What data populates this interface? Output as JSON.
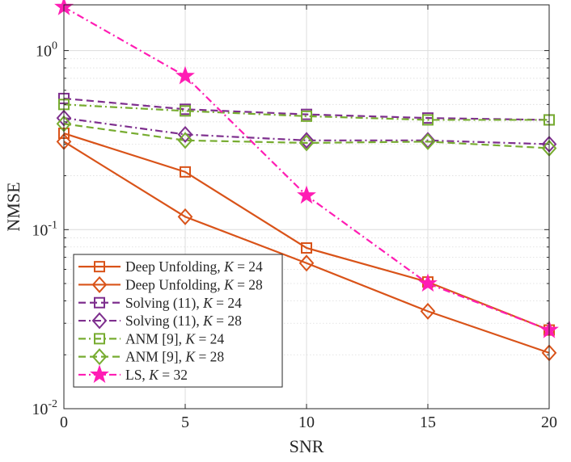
{
  "chart_data": {
    "type": "line",
    "xlabel": "SNR",
    "ylabel": "NMSE",
    "yscale": "log",
    "x": [
      0,
      5,
      10,
      15,
      20
    ],
    "xlim": [
      0,
      20
    ],
    "ylim": [
      0.01,
      1.8
    ],
    "grid": true,
    "xticks": [
      "0",
      "5",
      "10",
      "15",
      "20"
    ],
    "yticks": [
      {
        "value": 1,
        "base": "10",
        "exp": "0"
      },
      {
        "value": 0.1,
        "base": "10",
        "exp": "-1"
      },
      {
        "value": 0.01,
        "base": "10",
        "exp": "-2"
      }
    ],
    "legend_position": "bottom-left",
    "series": [
      {
        "name": "Deep Unfolding, ",
        "param": "K",
        "eq": " = 24",
        "values": [
          0.345,
          0.21,
          0.079,
          0.051,
          0.0275
        ],
        "color": "#D95319",
        "dash": "solid",
        "marker": "square"
      },
      {
        "name": "Deep Unfolding, ",
        "param": "K",
        "eq": " = 28",
        "values": [
          0.31,
          0.118,
          0.065,
          0.035,
          0.0205
        ],
        "color": "#D95319",
        "dash": "solid",
        "marker": "diamond"
      },
      {
        "name": "Solving (11), ",
        "param": "K",
        "eq": " = 24",
        "values": [
          0.54,
          0.47,
          0.44,
          0.42,
          0.41
        ],
        "color": "#7E2F8E",
        "dash": "dashed",
        "marker": "square"
      },
      {
        "name": "Solving (11), ",
        "param": "K",
        "eq": " = 28",
        "values": [
          0.42,
          0.34,
          0.315,
          0.315,
          0.3
        ],
        "color": "#7E2F8E",
        "dash": "dashdot",
        "marker": "diamond"
      },
      {
        "name": "ANM [9], ",
        "param": "K",
        "eq": " = 24",
        "values": [
          0.5,
          0.46,
          0.43,
          0.41,
          0.41
        ],
        "color": "#77AC30",
        "dash": "dashdot",
        "marker": "square"
      },
      {
        "name": "ANM [9], ",
        "param": "K",
        "eq": " = 28",
        "values": [
          0.39,
          0.315,
          0.305,
          0.31,
          0.285
        ],
        "color": "#77AC30",
        "dash": "dashed",
        "marker": "diamond"
      },
      {
        "name": "LS, ",
        "param": "K",
        "eq": " = 32",
        "values": [
          1.75,
          0.72,
          0.155,
          0.05,
          0.0275
        ],
        "color": "#FF1DB4",
        "dash": "dashdot",
        "marker": "star"
      }
    ]
  }
}
